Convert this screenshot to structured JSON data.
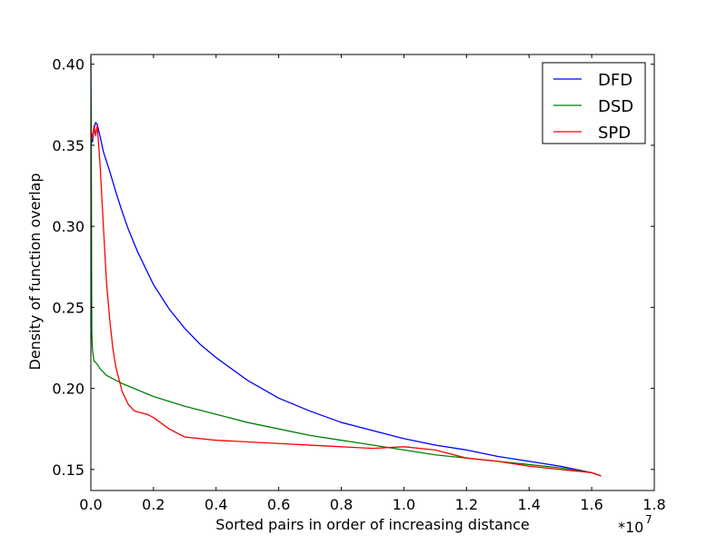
{
  "chart_data": {
    "type": "line",
    "xlabel": "Sorted pairs in order of increasing distance",
    "ylabel": "Density of function overlap",
    "x_multiplier_text": "*10",
    "x_multiplier_exp": "7",
    "xlim": [
      0,
      1.8
    ],
    "ylim": [
      0.137,
      0.406
    ],
    "x_ticks": [
      0.0,
      0.2,
      0.4,
      0.6,
      0.8,
      1.0,
      1.2,
      1.4,
      1.6,
      1.8
    ],
    "x_tick_labels": [
      "0.0",
      "0.2",
      "0.4",
      "0.6",
      "0.8",
      "1.0",
      "1.2",
      "1.4",
      "1.6",
      "1.8"
    ],
    "y_ticks": [
      0.15,
      0.2,
      0.25,
      0.3,
      0.35,
      0.4
    ],
    "y_tick_labels": [
      "0.15",
      "0.20",
      "0.25",
      "0.30",
      "0.35",
      "0.40"
    ],
    "grid": false,
    "legend_position": "top-right",
    "series": [
      {
        "name": "DFD",
        "color": "#0000ff",
        "x": [
          0.0,
          0.005,
          0.01,
          0.015,
          0.02,
          0.03,
          0.04,
          0.06,
          0.08,
          0.1,
          0.12,
          0.15,
          0.2,
          0.25,
          0.3,
          0.35,
          0.4,
          0.5,
          0.6,
          0.7,
          0.8,
          0.9,
          1.0,
          1.1,
          1.2,
          1.3,
          1.4,
          1.5,
          1.6,
          1.63
        ],
        "y": [
          0.358,
          0.352,
          0.36,
          0.364,
          0.363,
          0.355,
          0.346,
          0.334,
          0.321,
          0.309,
          0.298,
          0.284,
          0.264,
          0.249,
          0.237,
          0.227,
          0.219,
          0.205,
          0.194,
          0.186,
          0.179,
          0.174,
          0.169,
          0.165,
          0.162,
          0.158,
          0.155,
          0.152,
          0.148,
          0.146
        ]
      },
      {
        "name": "DSD",
        "color": "#008000",
        "x": [
          0.0,
          0.001,
          0.002,
          0.003,
          0.005,
          0.01,
          0.02,
          0.03,
          0.05,
          0.08,
          0.1,
          0.15,
          0.2,
          0.3,
          0.4,
          0.5,
          0.6,
          0.7,
          0.8,
          0.9,
          1.0,
          1.1,
          1.2,
          1.3,
          1.4,
          1.5,
          1.6,
          1.63
        ],
        "y": [
          0.405,
          0.37,
          0.3,
          0.235,
          0.224,
          0.217,
          0.215,
          0.212,
          0.208,
          0.205,
          0.203,
          0.199,
          0.195,
          0.189,
          0.184,
          0.179,
          0.175,
          0.171,
          0.168,
          0.165,
          0.162,
          0.159,
          0.157,
          0.155,
          0.153,
          0.151,
          0.148,
          0.146
        ]
      },
      {
        "name": "SPD",
        "color": "#ff0000",
        "x": [
          0.0,
          0.005,
          0.01,
          0.015,
          0.02,
          0.025,
          0.03,
          0.04,
          0.05,
          0.06,
          0.07,
          0.08,
          0.1,
          0.12,
          0.14,
          0.16,
          0.18,
          0.2,
          0.25,
          0.3,
          0.4,
          0.5,
          0.6,
          0.7,
          0.8,
          0.9,
          1.0,
          1.1,
          1.2,
          1.3,
          1.4,
          1.5,
          1.6,
          1.63
        ],
        "y": [
          0.36,
          0.354,
          0.362,
          0.356,
          0.362,
          0.35,
          0.336,
          0.3,
          0.265,
          0.243,
          0.225,
          0.213,
          0.198,
          0.19,
          0.186,
          0.185,
          0.184,
          0.182,
          0.175,
          0.17,
          0.168,
          0.167,
          0.166,
          0.165,
          0.164,
          0.163,
          0.164,
          0.162,
          0.157,
          0.155,
          0.152,
          0.15,
          0.148,
          0.146
        ]
      }
    ]
  }
}
